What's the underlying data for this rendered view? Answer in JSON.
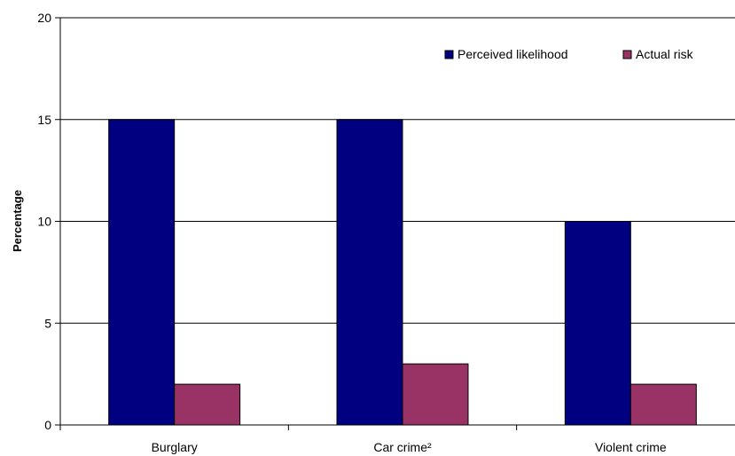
{
  "chart_data": {
    "type": "bar",
    "title": "",
    "xlabel": "",
    "ylabel": "Percentage",
    "categories": [
      "Burglary",
      "Car crime²",
      "Violent crime"
    ],
    "series": [
      {
        "name": "Perceived likelihood",
        "values": [
          15,
          15,
          10
        ],
        "color": "#000080"
      },
      {
        "name": "Actual risk",
        "values": [
          2,
          3,
          2
        ],
        "color": "#993366"
      }
    ],
    "ylim": [
      0,
      20
    ],
    "yticks": [
      0,
      5,
      10,
      15,
      20
    ],
    "grid": true,
    "legend": "top-right"
  }
}
